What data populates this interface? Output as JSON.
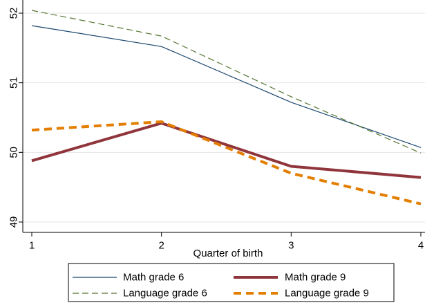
{
  "chart_data": {
    "type": "line",
    "title": "",
    "xlabel": "Quarter of birth",
    "ylabel": "",
    "x": [
      1,
      2,
      3,
      4
    ],
    "xlim": [
      1,
      4
    ],
    "ylim": [
      49,
      52
    ],
    "xticks": [
      "1",
      "2",
      "3",
      "4"
    ],
    "yticks": [
      "49",
      "50",
      "51",
      "52"
    ],
    "grid": "horizontal",
    "legend_position": "bottom",
    "series": [
      {
        "name": "Math grade 6",
        "values": [
          51.82,
          51.52,
          50.72,
          50.07
        ],
        "color": "#1a476f",
        "style": "solid",
        "weight": "thin"
      },
      {
        "name": "Math grade 9",
        "values": [
          49.88,
          50.42,
          49.8,
          49.64
        ],
        "color": "#90353b",
        "style": "solid",
        "weight": "thick"
      },
      {
        "name": "Language grade 6",
        "values": [
          52.04,
          51.67,
          50.8,
          49.99
        ],
        "color": "#55752f",
        "style": "dashed",
        "weight": "thin"
      },
      {
        "name": "Language grade 9",
        "values": [
          50.32,
          50.44,
          49.7,
          49.26
        ],
        "color": "#e37e00",
        "style": "dashed",
        "weight": "thick"
      }
    ]
  }
}
